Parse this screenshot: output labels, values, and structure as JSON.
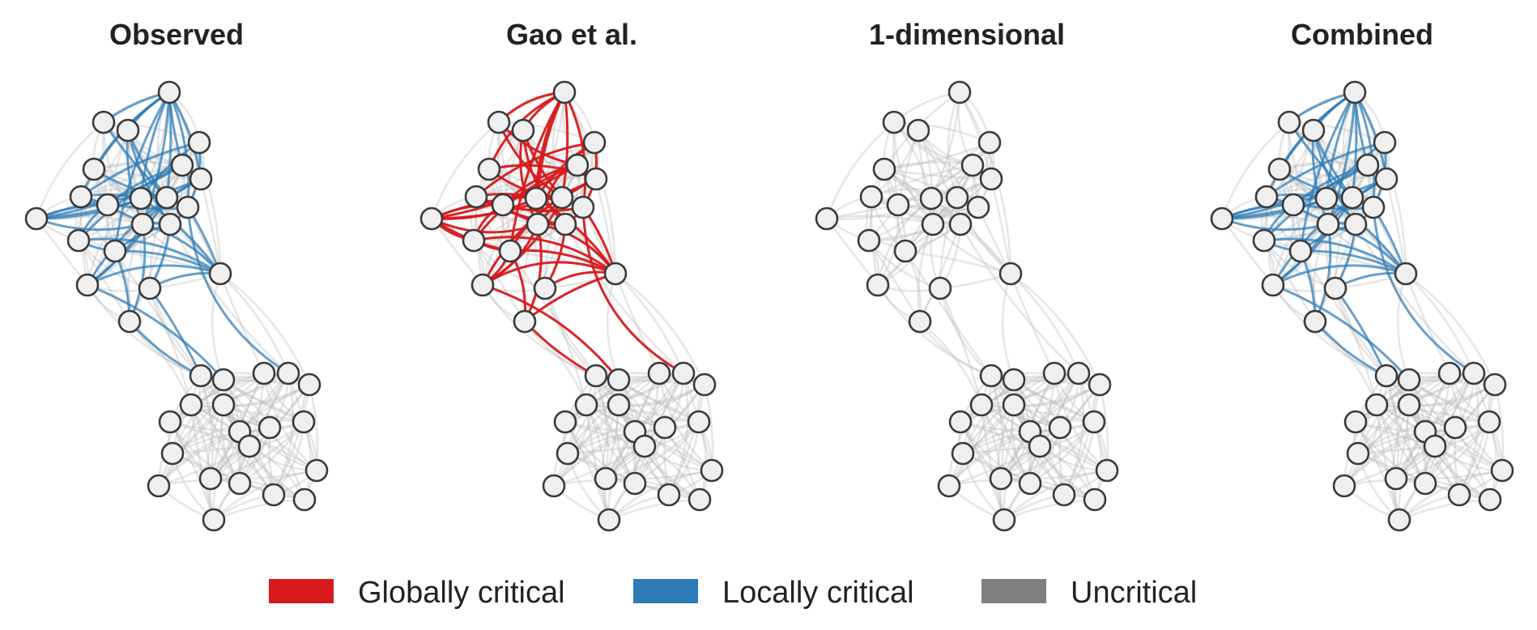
{
  "panels": [
    {
      "title": "Observed",
      "mode": "observed"
    },
    {
      "title": "Gao et al.",
      "mode": "gao"
    },
    {
      "title": "1-dimensional",
      "mode": "none"
    },
    {
      "title": "Combined",
      "mode": "observed"
    }
  ],
  "legend": [
    {
      "label": "Globally critical",
      "color": "#d7191c"
    },
    {
      "label": "Locally critical",
      "color": "#2c7bb6"
    },
    {
      "label": "Uncritical",
      "color": "#808080"
    }
  ],
  "colors": {
    "node_fill": "#efefef",
    "node_stroke": "#3a3a3a",
    "uncritical_edge": "#bdbdbd",
    "global": "#d7191c",
    "local": "#2c7bb6"
  }
}
